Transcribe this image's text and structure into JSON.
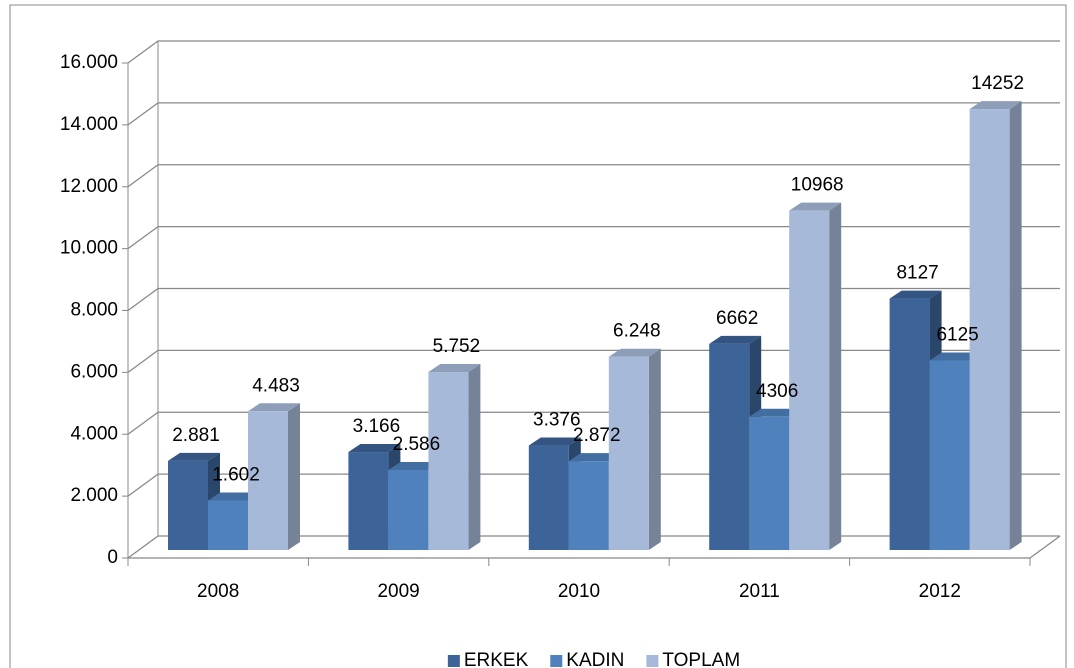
{
  "chart_data": {
    "type": "bar",
    "categories": [
      "2008",
      "2009",
      "2010",
      "2011",
      "2012"
    ],
    "series": [
      {
        "name": "ERKEK",
        "color": "#3d6499",
        "values": [
          2881,
          3166,
          3376,
          6662,
          8127
        ],
        "value_labels": [
          "2.881",
          "3.166",
          "3.376",
          "6662",
          "8127"
        ]
      },
      {
        "name": "KADIN",
        "color": "#4f81bd",
        "values": [
          1602,
          2586,
          2872,
          4306,
          6125
        ],
        "value_labels": [
          "1.602",
          "2.586",
          "2.872",
          "4306",
          "6125"
        ]
      },
      {
        "name": "TOPLAM",
        "color": "#a7b9d9",
        "values": [
          4483,
          5752,
          6248,
          10968,
          14252
        ],
        "value_labels": [
          "4.483",
          "5.752",
          "6.248",
          "10968",
          "14252"
        ]
      }
    ],
    "ylim": [
      0,
      16000
    ],
    "yticks": [
      0,
      {
        "value": 2000,
        "label": "2.000"
      },
      {
        "value": 4000,
        "label": "4.000"
      },
      {
        "value": 6000,
        "label": "6.000"
      },
      {
        "value": 8000,
        "label": "8.000"
      },
      {
        "value": 10000,
        "label": "10.000"
      },
      {
        "value": 12000,
        "label": "12.000"
      },
      {
        "value": 14000,
        "label": "14.000"
      },
      {
        "value": 16000,
        "label": "16.000"
      }
    ],
    "grid": true,
    "legend": "bottom"
  }
}
